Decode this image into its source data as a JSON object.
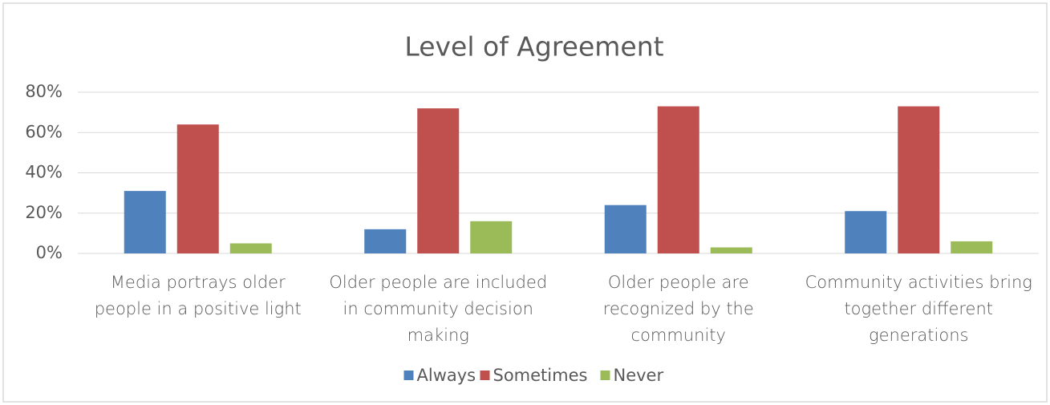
{
  "chart_data": {
    "type": "bar",
    "title": "Level of Agreement",
    "categories": [
      "Media portrays older people in a positive light",
      "Older people are included in community decision making",
      "Older people are recognized by the community",
      "Community activities bring together different generations"
    ],
    "series": [
      {
        "name": "Always",
        "color": "#4f81bd",
        "values": [
          31,
          12,
          24,
          21
        ]
      },
      {
        "name": "Sometimes",
        "color": "#c0504d",
        "values": [
          64,
          72,
          73,
          73
        ]
      },
      {
        "name": "Never",
        "color": "#9bbb59",
        "values": [
          5,
          16,
          3,
          6
        ]
      }
    ],
    "ylim": [
      0,
      80
    ],
    "yticks": [
      {
        "value": 0,
        "label": "0%"
      },
      {
        "value": 20,
        "label": "20%"
      },
      {
        "value": 40,
        "label": "40%"
      },
      {
        "value": 60,
        "label": "60%"
      },
      {
        "value": 80,
        "label": "80%"
      }
    ],
    "grid": true,
    "legend": "bottom"
  }
}
